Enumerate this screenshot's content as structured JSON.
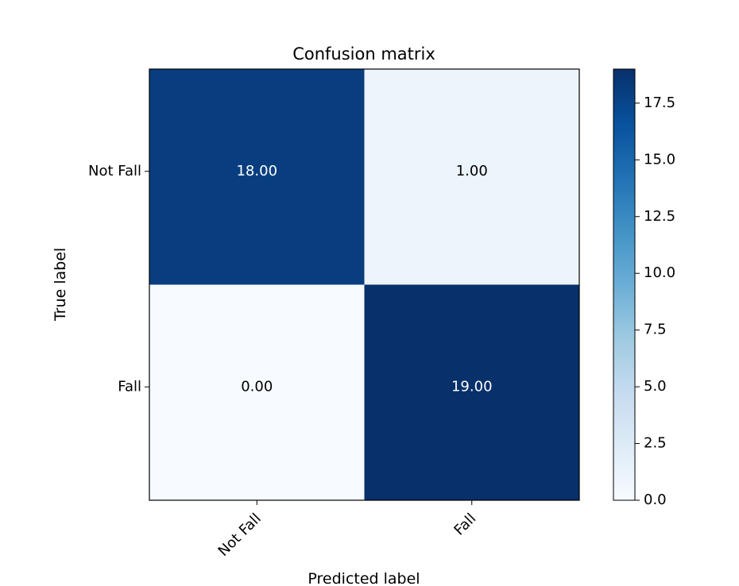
{
  "chart_data": {
    "type": "heatmap",
    "title": "Confusion matrix",
    "xlabel": "Predicted label",
    "ylabel": "True label",
    "x_categories": [
      "Not Fall",
      "Fall"
    ],
    "y_categories": [
      "Not Fall",
      "Fall"
    ],
    "values": [
      [
        18,
        1
      ],
      [
        0,
        19
      ]
    ],
    "cell_labels": [
      [
        "18.00",
        "1.00"
      ],
      [
        "0.00",
        "19.00"
      ]
    ],
    "colormap": "Blues",
    "colorbar": {
      "range": [
        0,
        19
      ],
      "ticks": [
        0.0,
        2.5,
        5.0,
        7.5,
        10.0,
        12.5,
        15.0,
        17.5
      ],
      "tick_labels": [
        "0.0",
        "2.5",
        "5.0",
        "7.5",
        "10.0",
        "12.5",
        "15.0",
        "17.5"
      ]
    },
    "grid": false
  }
}
